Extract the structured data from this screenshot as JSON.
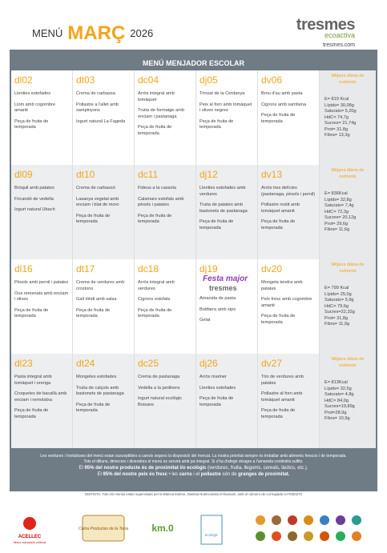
{
  "header": {
    "menu": "MENÚ",
    "month": "MARÇ",
    "year": "2026",
    "brand": "tresmes",
    "brand_sub": "ecoactiva",
    "website": "tresmes.com"
  },
  "table": {
    "title": "MENÚ MENJADOR ESCOLAR",
    "nutrients_title": "Mitjana diària de nutrients",
    "weeks": [
      {
        "days": [
          {
            "label": "dl02",
            "dishes": [
              "Llenties estofades",
              "Llom amb cogombre amanit",
              "Peça de fruita de temporada"
            ]
          },
          {
            "label": "dt03",
            "dishes": [
              "Crema de carbassa",
              "Pollastre a l'allet amb xampinyons",
              "Iogurt natural La Fageda"
            ]
          },
          {
            "label": "dc04",
            "dishes": [
              "Arròs integral amb tomàquet",
              "Truita de formatge amb enciam i pastanaga",
              "Peça de fruita de temporada"
            ]
          },
          {
            "label": "dj05",
            "dishes": [
              "Trinxat de la Cerdanya",
              "Peix al forn amb tomàquet i olives negres",
              "Peça de fruita de temporada"
            ]
          },
          {
            "label": "dv06",
            "dishes": [
              "Brou d'au amb pasta",
              "Cigrons amb samfaina",
              "Peça de fruita de temporada"
            ]
          }
        ],
        "nutrients": [
          "E= 819 Kcal",
          "Lípids= 30,08g",
          "Saturats= 5,20g",
          "HdC= 74,7g",
          "Sucres= 21,74g",
          "Prot= 31,8g",
          "Fibra= 13,3g"
        ]
      },
      {
        "days": [
          {
            "label": "dl09",
            "dishes": [
              "Bròquil amb patates",
              "Fricandó de vedella",
              "Iogurt natural Ubach"
            ]
          },
          {
            "label": "dt10",
            "dishes": [
              "Crema de carbassó",
              "Lasanya vegetal amb enciam i blat de moro",
              "Peça de fruita de temporada"
            ]
          },
          {
            "label": "dc11",
            "dishes": [
              "Fideus a la cassola",
              "Calamars estofats amb pèsols i patates",
              "Peça de fruita de temporada"
            ]
          },
          {
            "label": "dj12",
            "dishes": [
              "Llenties estofades amb verdures",
              "Truita de patates amb bastonets de pastanaga",
              "Peça de fruita de temporada"
            ]
          },
          {
            "label": "dv13",
            "dishes": [
              "Arròs tres delícies (pastanaga, pèsols i pernil)",
              "Pollastre rostit amb tomàquet amanit",
              "Peça de fruita de temporada"
            ]
          }
        ],
        "nutrients": [
          "E= 836Kcal",
          "Lípids= 32,8g",
          "Saturats= 7,4g",
          "HdC= 72,3g",
          "Sucres= 20,12g",
          "Prot= 29,6g",
          "Fibra= 11,6g"
        ]
      },
      {
        "days": [
          {
            "label": "dl16",
            "dishes": [
              "Pèsols amb pernil i patates",
              "Ous remenats amb enciam i olives",
              "Peça de fruita de temporada"
            ]
          },
          {
            "label": "dt17",
            "dishes": [
              "Crema de verdures amb crostons",
              "Gall dindi amb salsa",
              "Peça de fruita de temporada"
            ]
          },
          {
            "label": "dc18",
            "dishes": [
              "Arròs integral amb verdures",
              "Cigrons estofats",
              "Peça de fruita de temporada"
            ]
          },
          {
            "label": "dj19",
            "banner": [
              "Festa major",
              "tresmes"
            ],
            "dishes": [
              "Amanida de pasta",
              "Botifarra amb xips",
              "Gelat"
            ]
          },
          {
            "label": "dv20",
            "dishes": [
              "Mongeta tendra amb patates",
              "Peix fresc amb cogombre amanit",
              "Peça de fruita de temporada"
            ]
          }
        ],
        "nutrients": [
          "E= 799 Kcal",
          "Lípids= 25,0g",
          "Saturats= 5,9g",
          "HdC= 79,6g",
          "Sucres=22,32g",
          "Prot= 31,8g",
          "Fibra= 11,9g"
        ]
      },
      {
        "days": [
          {
            "label": "dl23",
            "dishes": [
              "Pasta integral amb tomàquet i orenga",
              "Croquetes de bacallà amb enciam i remolatxa",
              "Peça de fruita de temporada"
            ]
          },
          {
            "label": "dt24",
            "dishes": [
              "Mongetes estofades",
              "Truita de calçots amb bastonets de pastanaga",
              "Peça de fruita de temporada"
            ]
          },
          {
            "label": "dc25",
            "dishes": [
              "Crema de pastanaga",
              "Vedella a la jardinera",
              "Iogurt natural ecològic Boisans"
            ]
          },
          {
            "label": "dj26",
            "dishes": [
              "Arròs mariner",
              "Llenties estofades",
              "Peça de fruita de temporada"
            ]
          },
          {
            "label": "dv27",
            "dishes": [
              "Trio de verdures amb patates",
              "Pollastre al forn amb tomàquet amanit",
              "Peça de fruita de temporada"
            ]
          }
        ],
        "nutrients": [
          "E= 813Kcal",
          "Lípids= 32,5g",
          "Saturats= 4,8g",
          "HdC= 84,0g",
          "Sucres=19,89g",
          "Prot=28,9g",
          "Fibra= 10,9g"
        ]
      }
    ]
  },
  "footer": {
    "notes": [
      [
        {
          "text": "Les verdures i hortalisses del menú estan susceptibles a canvis segons la disposició del mercat. La nostra prioritat sempre és treballar amb aliments frescos i de temporada.",
          "bold": false
        }
      ],
      [
        {
          "text": "Tots el dilluns, dimecres i divendres el menú es servirà amb pa integral. Si s'ha d'afegir vinagre a l'amanida contindrà sulfits.",
          "bold": false
        }
      ],
      [
        {
          "text": "El ",
          "bold": false
        },
        {
          "text": "95% del nostre producte és de proximitat i/o ecològic",
          "bold": true
        },
        {
          "text": " (verdures, fruita, llegums, cereals, làctics, etc.).",
          "bold": false
        }
      ],
      [
        {
          "text": "El ",
          "bold": false
        },
        {
          "text": "95% del nostre peix és fresc",
          "bold": true
        },
        {
          "text": " • les ",
          "bold": false
        },
        {
          "text": "carns",
          "bold": true
        },
        {
          "text": " i el ",
          "bold": false
        },
        {
          "text": "pollastre",
          "bold": true
        },
        {
          "text": " són de ",
          "bold": false
        },
        {
          "text": "granges de proximitat.",
          "bold": true
        }
      ]
    ],
    "dietista": "DIETISTA: Tots els menús estan supervisats per la Blanca Estève, Dietista Nutricionista d'Alvanutri, amb el número de col·legiada CAT000276"
  },
  "logos": [
    "ACELLEC",
    "lleure educació cultura",
    "Cuina Productes de la Terra",
    "km.0",
    "ecològic"
  ]
}
